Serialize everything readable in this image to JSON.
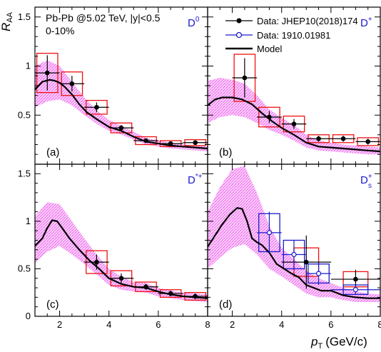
{
  "figure": {
    "y_axis_title": "R",
    "y_axis_sub": "AA",
    "x_axis_title_p": "p",
    "x_axis_title_sub": "T",
    "x_axis_title_unit": "(GeV/c)",
    "header_line1": "Pb-Pb @5.02 TeV, |y|<0.5",
    "header_line2": "0-10%",
    "legend": [
      {
        "label": "Data: JHEP10(2018)174",
        "color": "#000000",
        "marker": "filled-circle"
      },
      {
        "label": "Data: 1910.01981",
        "color": "#1a1acc",
        "marker": "open-circle"
      },
      {
        "label": "Model",
        "color": "#000000",
        "marker": "line"
      }
    ],
    "colors": {
      "band": "#ee66ee",
      "syst_red": "#ee1111",
      "syst_blue": "#1a1acc",
      "curve": "#000000",
      "data": "#000000",
      "label_blue": "#1a1acc"
    }
  },
  "chart_data": [
    {
      "type": "line",
      "panel_label": "(a)",
      "particle": "D",
      "particle_sup": "0",
      "particle_sub": "",
      "xlim": [
        1,
        8
      ],
      "ylim": [
        0,
        1.6
      ],
      "x_ticks": [
        2,
        4,
        6,
        8
      ],
      "x_tick_labels": [
        "",
        "",
        "",
        ""
      ],
      "y_ticks": [
        0.5,
        1,
        1.5
      ],
      "y_tick_labels": [
        "0.5",
        "1",
        "1.5"
      ],
      "model_curve": {
        "x": [
          1,
          1.3,
          1.6,
          1.8,
          2.0,
          2.2,
          2.5,
          2.8,
          3.1,
          3.5,
          4.0,
          4.5,
          5.0,
          5.5,
          6.0,
          6.5,
          7.0,
          7.5,
          8.0
        ],
        "y": [
          0.76,
          0.84,
          0.86,
          0.85,
          0.83,
          0.79,
          0.71,
          0.61,
          0.53,
          0.46,
          0.38,
          0.34,
          0.28,
          0.23,
          0.21,
          0.19,
          0.18,
          0.17,
          0.16
        ]
      },
      "model_band": {
        "x": [
          1,
          1.5,
          2,
          2.5,
          3,
          3.5,
          4,
          4.5,
          5,
          5.5,
          6,
          6.5,
          7,
          7.5,
          8
        ],
        "upper": [
          1.0,
          1.06,
          1.0,
          0.84,
          0.68,
          0.55,
          0.45,
          0.39,
          0.33,
          0.27,
          0.24,
          0.22,
          0.2,
          0.19,
          0.18
        ],
        "lower": [
          0.58,
          0.64,
          0.66,
          0.6,
          0.5,
          0.41,
          0.34,
          0.3,
          0.25,
          0.2,
          0.18,
          0.16,
          0.15,
          0.14,
          0.13
        ]
      },
      "series": [
        {
          "name": "Data: JHEP10(2018)174",
          "marker": "filled",
          "points": [
            {
              "x": 1.5,
              "y": 0.93,
              "xerr": 0.5,
              "yerr_lo": 0.18,
              "yerr_hi": 0.18,
              "sys": 0.2
            },
            {
              "x": 2.5,
              "y": 0.82,
              "xerr": 0.5,
              "yerr_lo": 0.08,
              "yerr_hi": 0.08,
              "sys": 0.12
            },
            {
              "x": 3.5,
              "y": 0.58,
              "xerr": 0.5,
              "yerr_lo": 0.05,
              "yerr_hi": 0.05,
              "sys": 0.07
            },
            {
              "x": 4.5,
              "y": 0.37,
              "xerr": 0.5,
              "yerr_lo": 0.03,
              "yerr_hi": 0.03,
              "sys": 0.05
            },
            {
              "x": 5.5,
              "y": 0.24,
              "xerr": 0.5,
              "yerr_lo": 0.02,
              "yerr_hi": 0.02,
              "sys": 0.04
            },
            {
              "x": 6.5,
              "y": 0.21,
              "xerr": 0.5,
              "yerr_lo": 0.02,
              "yerr_hi": 0.02,
              "sys": 0.03
            },
            {
              "x": 7.5,
              "y": 0.22,
              "xerr": 0.5,
              "yerr_lo": 0.02,
              "yerr_hi": 0.02,
              "sys": 0.03
            }
          ]
        }
      ]
    },
    {
      "type": "line",
      "panel_label": "(b)",
      "particle": "D",
      "particle_sup": "+",
      "particle_sub": "",
      "xlim": [
        1,
        8
      ],
      "ylim": [
        0,
        1.6
      ],
      "x_ticks": [
        2,
        4,
        6,
        8
      ],
      "x_tick_labels": [
        "",
        "",
        "",
        ""
      ],
      "y_ticks": [
        0.5,
        1,
        1.5
      ],
      "y_tick_labels": [
        "",
        "",
        ""
      ],
      "model_curve": {
        "x": [
          1,
          1.3,
          1.6,
          2.0,
          2.4,
          2.8,
          3.2,
          3.6,
          4.0,
          4.5,
          5.0,
          5.5,
          6.0,
          6.5,
          7.0,
          7.5,
          8.0
        ],
        "y": [
          0.6,
          0.66,
          0.68,
          0.68,
          0.66,
          0.61,
          0.52,
          0.44,
          0.37,
          0.3,
          0.22,
          0.18,
          0.17,
          0.16,
          0.15,
          0.14,
          0.13
        ]
      },
      "model_band": {
        "x": [
          1,
          1.5,
          2,
          2.5,
          3,
          3.5,
          4,
          4.5,
          5,
          5.5,
          6,
          6.5,
          7,
          7.5,
          8
        ],
        "upper": [
          0.85,
          0.88,
          0.86,
          0.82,
          0.7,
          0.56,
          0.47,
          0.4,
          0.3,
          0.24,
          0.22,
          0.2,
          0.19,
          0.18,
          0.17
        ],
        "lower": [
          0.42,
          0.48,
          0.5,
          0.48,
          0.42,
          0.35,
          0.3,
          0.24,
          0.17,
          0.14,
          0.13,
          0.12,
          0.11,
          0.1,
          0.1
        ]
      },
      "series": [
        {
          "name": "Data: JHEP10(2018)174",
          "marker": "filled",
          "points": [
            {
              "x": 2.5,
              "y": 0.88,
              "xerr": 0.5,
              "yerr_lo": 0.2,
              "yerr_hi": 0.2,
              "sys": 0.24
            },
            {
              "x": 3.5,
              "y": 0.48,
              "xerr": 0.5,
              "yerr_lo": 0.06,
              "yerr_hi": 0.06,
              "sys": 0.1
            },
            {
              "x": 4.5,
              "y": 0.41,
              "xerr": 0.5,
              "yerr_lo": 0.05,
              "yerr_hi": 0.05,
              "sys": 0.08
            },
            {
              "x": 5.5,
              "y": 0.26,
              "xerr": 0.5,
              "yerr_lo": 0.03,
              "yerr_hi": 0.03,
              "sys": 0.04
            },
            {
              "x": 6.5,
              "y": 0.26,
              "xerr": 0.5,
              "yerr_lo": 0.03,
              "yerr_hi": 0.03,
              "sys": 0.04
            },
            {
              "x": 7.5,
              "y": 0.23,
              "xerr": 0.5,
              "yerr_lo": 0.03,
              "yerr_hi": 0.03,
              "sys": 0.04
            }
          ]
        }
      ]
    },
    {
      "type": "line",
      "panel_label": "(c)",
      "particle": "D",
      "particle_sup": "*+",
      "particle_sub": "",
      "xlim": [
        1,
        8
      ],
      "ylim": [
        0,
        1.6
      ],
      "x_ticks": [
        2,
        4,
        6,
        8
      ],
      "x_tick_labels": [
        "2",
        "4",
        "6",
        "8"
      ],
      "y_ticks": [
        0,
        0.5,
        1,
        1.5
      ],
      "y_tick_labels": [
        "0",
        "0.5",
        "1",
        "1.5"
      ],
      "model_curve": {
        "x": [
          1,
          1.3,
          1.5,
          1.7,
          1.9,
          2.1,
          2.4,
          2.8,
          3.2,
          3.6,
          4.0,
          4.5,
          5.0,
          5.5,
          6.0,
          6.5,
          7.0,
          7.5,
          8.0
        ],
        "y": [
          0.74,
          0.82,
          0.93,
          1.01,
          1.0,
          0.93,
          0.82,
          0.7,
          0.59,
          0.5,
          0.4,
          0.34,
          0.31,
          0.3,
          0.26,
          0.23,
          0.21,
          0.2,
          0.19
        ]
      },
      "model_band": {
        "x": [
          1,
          1.5,
          2,
          2.5,
          3,
          3.5,
          4,
          4.5,
          5,
          5.5,
          6,
          6.5,
          7,
          7.5,
          8
        ],
        "upper": [
          1.05,
          1.2,
          1.18,
          1.0,
          0.82,
          0.65,
          0.5,
          0.42,
          0.36,
          0.35,
          0.3,
          0.27,
          0.25,
          0.24,
          0.23
        ],
        "lower": [
          0.56,
          0.68,
          0.74,
          0.65,
          0.55,
          0.44,
          0.33,
          0.28,
          0.26,
          0.25,
          0.21,
          0.19,
          0.17,
          0.16,
          0.15
        ]
      },
      "series": [
        {
          "name": "Data: JHEP10(2018)174",
          "marker": "filled",
          "points": [
            {
              "x": 3.5,
              "y": 0.57,
              "xerr": 0.5,
              "yerr_lo": 0.08,
              "yerr_hi": 0.08,
              "sys": 0.12
            },
            {
              "x": 4.5,
              "y": 0.4,
              "xerr": 0.5,
              "yerr_lo": 0.05,
              "yerr_hi": 0.05,
              "sys": 0.08
            },
            {
              "x": 5.5,
              "y": 0.31,
              "xerr": 0.5,
              "yerr_lo": 0.03,
              "yerr_hi": 0.03,
              "sys": 0.05
            },
            {
              "x": 6.5,
              "y": 0.24,
              "xerr": 0.5,
              "yerr_lo": 0.03,
              "yerr_hi": 0.03,
              "sys": 0.04
            },
            {
              "x": 7.5,
              "y": 0.21,
              "xerr": 0.5,
              "yerr_lo": 0.03,
              "yerr_hi": 0.03,
              "sys": 0.04
            }
          ]
        }
      ]
    },
    {
      "type": "line",
      "panel_label": "(d)",
      "particle": "D",
      "particle_sup": "+",
      "particle_sub": "s",
      "xlim": [
        1,
        8
      ],
      "ylim": [
        0,
        1.6
      ],
      "x_ticks": [
        2,
        4,
        6,
        8
      ],
      "x_tick_labels": [
        "2",
        "4",
        "6",
        "8"
      ],
      "y_ticks": [
        0,
        0.5,
        1,
        1.5
      ],
      "y_tick_labels": [
        "",
        "",
        "",
        ""
      ],
      "model_curve": {
        "x": [
          1,
          1.3,
          1.6,
          1.9,
          2.2,
          2.4,
          2.6,
          2.8,
          3.0,
          3.2,
          3.5,
          3.8,
          4.1,
          4.4,
          4.7,
          5.0,
          5.3,
          5.6,
          6.0,
          6.5,
          7.0,
          7.5,
          8.0
        ],
        "y": [
          0.73,
          0.85,
          0.97,
          1.07,
          1.14,
          1.13,
          1.0,
          0.82,
          0.78,
          0.75,
          0.67,
          0.55,
          0.5,
          0.45,
          0.41,
          0.33,
          0.3,
          0.27,
          0.27,
          0.22,
          0.2,
          0.19,
          0.19
        ]
      },
      "model_band": {
        "x": [
          1,
          1.5,
          2,
          2.5,
          3,
          3.5,
          4,
          4.5,
          5,
          5.5,
          6,
          6.5,
          7,
          7.5,
          8
        ],
        "upper": [
          1.1,
          1.36,
          1.55,
          1.58,
          1.3,
          0.95,
          0.72,
          0.6,
          0.48,
          0.4,
          0.35,
          0.3,
          0.26,
          0.24,
          0.23
        ],
        "lower": [
          0.5,
          0.62,
          0.72,
          0.76,
          0.65,
          0.5,
          0.42,
          0.33,
          0.24,
          0.2,
          0.2,
          0.17,
          0.15,
          0.15,
          0.15
        ]
      },
      "series": [
        {
          "name": "Data: JHEP10(2018)174",
          "marker": "filled",
          "points": [
            {
              "x": 5.0,
              "y": 0.57,
              "xerr": 1.0,
              "yerr_lo": 0.28,
              "yerr_hi": 0.28,
              "sys": 0.15
            },
            {
              "x": 7.0,
              "y": 0.39,
              "xerr": 1.0,
              "yerr_lo": 0.1,
              "yerr_hi": 0.1,
              "sys": 0.08
            }
          ]
        },
        {
          "name": "Data: 1910.01981",
          "marker": "open",
          "points": [
            {
              "x": 3.5,
              "y": 0.88,
              "xerr": 0.5,
              "yerr_lo": 0.22,
              "yerr_hi": 0.22,
              "sys": 0.2
            },
            {
              "x": 4.5,
              "y": 0.65,
              "xerr": 0.5,
              "yerr_lo": 0.15,
              "yerr_hi": 0.15,
              "sys": 0.15
            },
            {
              "x": 5.5,
              "y": 0.45,
              "xerr": 0.5,
              "yerr_lo": 0.12,
              "yerr_hi": 0.12,
              "sys": 0.1
            },
            {
              "x": 7.0,
              "y": 0.28,
              "xerr": 1.0,
              "yerr_lo": 0.05,
              "yerr_hi": 0.05,
              "sys": 0.05
            }
          ]
        }
      ]
    }
  ]
}
